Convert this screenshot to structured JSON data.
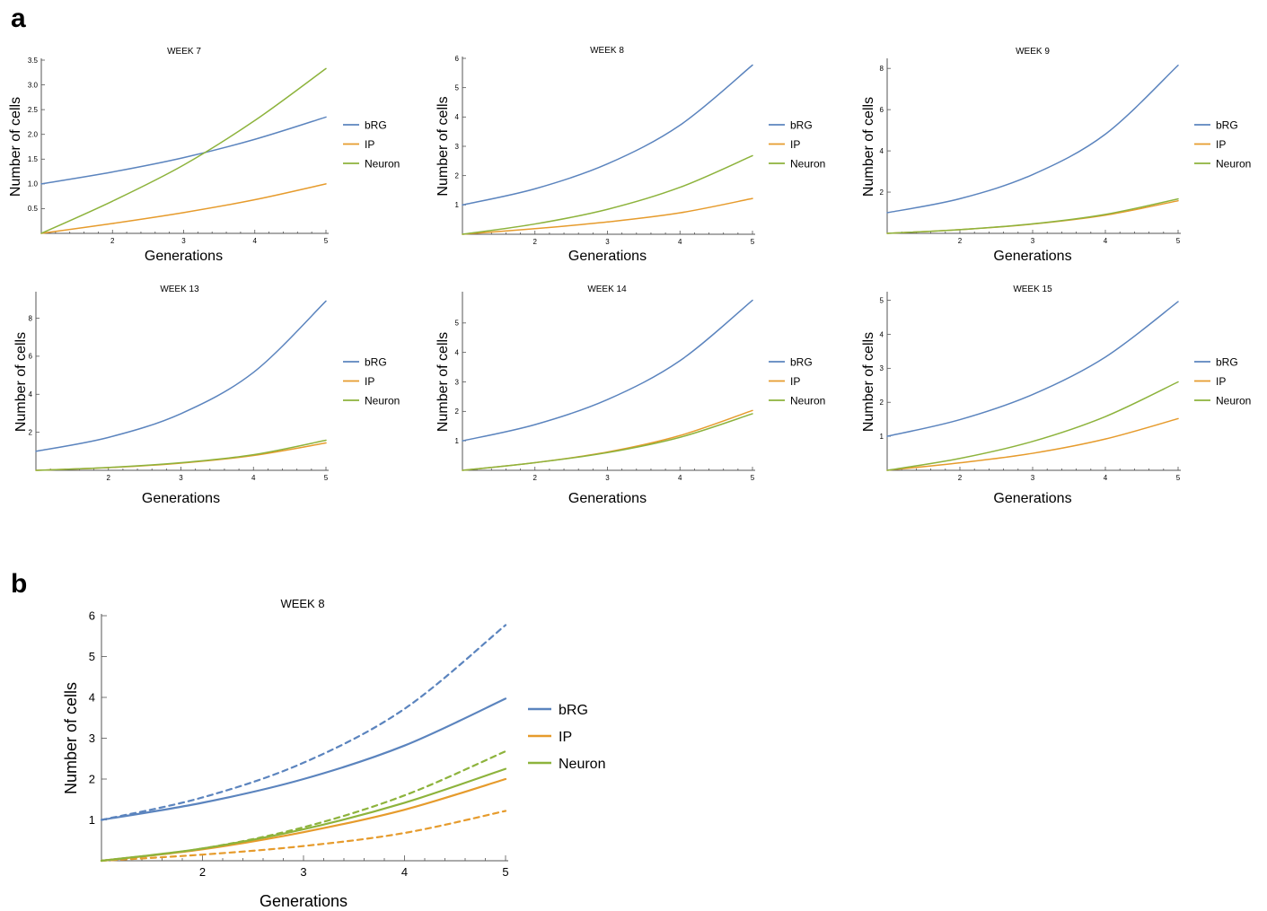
{
  "panels": {
    "a": "a",
    "b": "b"
  },
  "colors": {
    "bRG": "#5b84be",
    "IP": "#e69b2c",
    "Neuron": "#8db33c"
  },
  "chart_data": [
    {
      "panel": "a",
      "type": "line",
      "title": "WEEK 7",
      "xlabel": "Generations",
      "ylabel": "Number of cells",
      "xlim": [
        1,
        5
      ],
      "ylim": [
        0,
        3.5
      ],
      "xticks": [
        2,
        3,
        4,
        5
      ],
      "yticks": [
        0.5,
        1.0,
        1.5,
        2.0,
        2.5,
        3.0,
        3.5
      ],
      "ytick_labels": [
        "0.5",
        "1.0",
        "1.5",
        "2.0",
        "2.5",
        "3.0",
        "3.5"
      ],
      "legend_position": "right",
      "series": [
        {
          "name": "bRG",
          "x": [
            1,
            2,
            3,
            4,
            5
          ],
          "values": [
            1.0,
            1.24,
            1.53,
            1.9,
            2.35
          ]
        },
        {
          "name": "IP",
          "x": [
            1,
            2,
            3,
            4,
            5
          ],
          "values": [
            0.0,
            0.2,
            0.42,
            0.68,
            1.0
          ]
        },
        {
          "name": "Neuron",
          "x": [
            1,
            2,
            3,
            4,
            5
          ],
          "values": [
            0.0,
            0.65,
            1.38,
            2.28,
            3.33
          ]
        }
      ]
    },
    {
      "panel": "a",
      "type": "line",
      "title": "WEEK 8",
      "xlabel": "Generations",
      "ylabel": "Number of cells",
      "xlim": [
        1,
        5
      ],
      "ylim": [
        0,
        6
      ],
      "xticks": [
        2,
        3,
        4,
        5
      ],
      "yticks": [
        1,
        2,
        3,
        4,
        5,
        6
      ],
      "ytick_labels": [
        "1",
        "2",
        "3",
        "4",
        "5",
        "6"
      ],
      "legend_position": "right",
      "series": [
        {
          "name": "bRG",
          "x": [
            1,
            2,
            3,
            4,
            5
          ],
          "values": [
            1.0,
            1.55,
            2.4,
            3.72,
            5.77
          ]
        },
        {
          "name": "IP",
          "x": [
            1,
            2,
            3,
            4,
            5
          ],
          "values": [
            0.0,
            0.19,
            0.42,
            0.73,
            1.22
          ]
        },
        {
          "name": "Neuron",
          "x": [
            1,
            2,
            3,
            4,
            5
          ],
          "values": [
            0.0,
            0.35,
            0.85,
            1.6,
            2.68
          ]
        }
      ]
    },
    {
      "panel": "a",
      "type": "line",
      "title": "WEEK 9",
      "xlabel": "Generations",
      "ylabel": "Number of cells",
      "xlim": [
        1,
        5
      ],
      "ylim": [
        0,
        8.4
      ],
      "xticks": [
        2,
        3,
        4,
        5
      ],
      "yticks": [
        2,
        4,
        6,
        8
      ],
      "ytick_labels": [
        "2",
        "4",
        "6",
        "8"
      ],
      "legend_position": "right",
      "series": [
        {
          "name": "bRG",
          "x": [
            1,
            2,
            3,
            4,
            5
          ],
          "values": [
            1.0,
            1.68,
            2.85,
            4.81,
            8.15
          ]
        },
        {
          "name": "IP",
          "x": [
            1,
            2,
            3,
            4,
            5
          ],
          "values": [
            0.0,
            0.18,
            0.45,
            0.88,
            1.58
          ]
        },
        {
          "name": "Neuron",
          "x": [
            1,
            2,
            3,
            4,
            5
          ],
          "values": [
            0.0,
            0.18,
            0.46,
            0.92,
            1.67
          ]
        }
      ]
    },
    {
      "panel": "a",
      "type": "line",
      "title": "WEEK 13",
      "xlabel": "Generations",
      "ylabel": "Number of cells",
      "xlim": [
        1,
        5
      ],
      "ylim": [
        0,
        9.3
      ],
      "xticks": [
        2,
        3,
        4,
        5
      ],
      "yticks": [
        2,
        4,
        6,
        8
      ],
      "ytick_labels": [
        "2",
        "4",
        "6",
        "8"
      ],
      "legend_position": "right",
      "series": [
        {
          "name": "bRG",
          "x": [
            1,
            2,
            3,
            4,
            5
          ],
          "values": [
            1.0,
            1.73,
            2.98,
            5.15,
            8.9
          ]
        },
        {
          "name": "IP",
          "x": [
            1,
            2,
            3,
            4,
            5
          ],
          "values": [
            0.0,
            0.14,
            0.38,
            0.78,
            1.44
          ]
        },
        {
          "name": "Neuron",
          "x": [
            1,
            2,
            3,
            4,
            5
          ],
          "values": [
            0.0,
            0.15,
            0.4,
            0.82,
            1.58
          ]
        }
      ]
    },
    {
      "panel": "a",
      "type": "line",
      "title": "WEEK 14",
      "xlabel": "Generations",
      "ylabel": "Number of cells",
      "xlim": [
        1,
        5
      ],
      "ylim": [
        0,
        6
      ],
      "xticks": [
        2,
        3,
        4,
        5
      ],
      "yticks": [
        1,
        2,
        3,
        4,
        5
      ],
      "ytick_labels": [
        "1",
        "2",
        "3",
        "4",
        "5"
      ],
      "legend_position": "right",
      "series": [
        {
          "name": "bRG",
          "x": [
            1,
            2,
            3,
            4,
            5
          ],
          "values": [
            1.0,
            1.55,
            2.4,
            3.72,
            5.77
          ]
        },
        {
          "name": "IP",
          "x": [
            1,
            2,
            3,
            4,
            5
          ],
          "values": [
            0.0,
            0.26,
            0.62,
            1.18,
            2.03
          ]
        },
        {
          "name": "Neuron",
          "x": [
            1,
            2,
            3,
            4,
            5
          ],
          "values": [
            0.0,
            0.26,
            0.6,
            1.12,
            1.92
          ]
        }
      ]
    },
    {
      "panel": "a",
      "type": "line",
      "title": "WEEK 15",
      "xlabel": "Generations",
      "ylabel": "Number of cells",
      "xlim": [
        1,
        5
      ],
      "ylim": [
        0,
        5.2
      ],
      "xticks": [
        2,
        3,
        4,
        5
      ],
      "yticks": [
        1,
        2,
        3,
        4,
        5
      ],
      "ytick_labels": [
        "1",
        "2",
        "3",
        "4",
        "5"
      ],
      "legend_position": "right",
      "series": [
        {
          "name": "bRG",
          "x": [
            1,
            2,
            3,
            4,
            5
          ],
          "values": [
            1.0,
            1.49,
            2.23,
            3.33,
            4.96
          ]
        },
        {
          "name": "IP",
          "x": [
            1,
            2,
            3,
            4,
            5
          ],
          "values": [
            0.0,
            0.22,
            0.5,
            0.92,
            1.52
          ]
        },
        {
          "name": "Neuron",
          "x": [
            1,
            2,
            3,
            4,
            5
          ],
          "values": [
            0.0,
            0.35,
            0.85,
            1.58,
            2.6
          ]
        }
      ]
    },
    {
      "panel": "b",
      "type": "line",
      "title": "WEEK 8",
      "xlabel": "Generations",
      "ylabel": "Number of cells",
      "xlim": [
        1,
        5
      ],
      "ylim": [
        0,
        6
      ],
      "xticks": [
        2,
        3,
        4,
        5
      ],
      "yticks": [
        1,
        2,
        3,
        4,
        5,
        6
      ],
      "ytick_labels": [
        "1",
        "2",
        "3",
        "4",
        "5",
        "6"
      ],
      "legend_position": "right",
      "series": [
        {
          "name": "bRG",
          "style": "solid",
          "x": [
            1,
            2,
            3,
            4,
            5
          ],
          "values": [
            1.0,
            1.42,
            2.0,
            2.82,
            3.97
          ]
        },
        {
          "name": "IP",
          "style": "solid",
          "x": [
            1,
            2,
            3,
            4,
            5
          ],
          "values": [
            0.0,
            0.28,
            0.7,
            1.25,
            2.0
          ]
        },
        {
          "name": "Neuron",
          "style": "solid",
          "x": [
            1,
            2,
            3,
            4,
            5
          ],
          "values": [
            0.0,
            0.3,
            0.77,
            1.42,
            2.25
          ]
        },
        {
          "style": "dashed",
          "color_of": "bRG",
          "x": [
            1,
            2,
            3,
            4,
            5
          ],
          "values": [
            1.0,
            1.55,
            2.4,
            3.72,
            5.77
          ]
        },
        {
          "style": "dashed",
          "color_of": "IP",
          "x": [
            1,
            2,
            3,
            4,
            5
          ],
          "values": [
            0.0,
            0.15,
            0.36,
            0.68,
            1.22
          ]
        },
        {
          "style": "dashed",
          "color_of": "Neuron",
          "x": [
            1,
            2,
            3,
            4,
            5
          ],
          "values": [
            0.0,
            0.3,
            0.82,
            1.6,
            2.68
          ]
        }
      ]
    }
  ]
}
